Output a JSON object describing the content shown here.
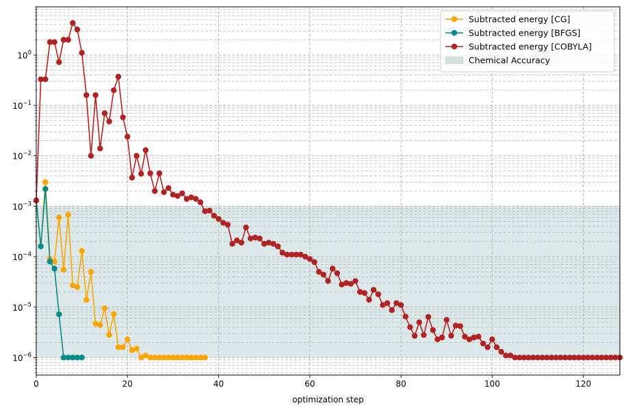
{
  "chart_data": {
    "type": "line",
    "yscale": "log",
    "xlabel": "optimization step",
    "ylabel": "",
    "xlim": [
      0,
      128
    ],
    "ylim": [
      4.5e-07,
      9.0
    ],
    "grid": true,
    "legend_position": "top-right",
    "x_ticks": [
      0,
      20,
      40,
      60,
      80,
      100,
      120
    ],
    "x_tick_labels": [
      "0",
      "20",
      "40",
      "60",
      "80",
      "100",
      "120"
    ],
    "y_ticks": [
      1e-06,
      1e-05,
      0.0001,
      0.001,
      0.01,
      0.1,
      1.0
    ],
    "y_tick_labels": [
      {
        "base": "10",
        "exp": "−6"
      },
      {
        "base": "10",
        "exp": "−5"
      },
      {
        "base": "10",
        "exp": "−4"
      },
      {
        "base": "10",
        "exp": "−3"
      },
      {
        "base": "10",
        "exp": "−2"
      },
      {
        "base": "10",
        "exp": "−1"
      },
      {
        "base": "10",
        "exp": "0"
      }
    ],
    "band": {
      "name": "Chemical Accuracy",
      "y0": 1e-06,
      "y1": 0.001,
      "color": "#d2e2e2"
    },
    "series": [
      {
        "name": " Subtracted energy [CG]",
        "color": "#ffa500",
        "values": [
          0.0013,
          0.00016,
          0.003,
          9e-05,
          8e-05,
          0.0006,
          5.5e-05,
          0.00068,
          2.7e-05,
          2.5e-05,
          0.00013,
          1.4e-05,
          5e-05,
          4.7e-06,
          4.4e-06,
          9.5e-06,
          2.8e-06,
          7.3e-06,
          1.6e-06,
          1.6e-06,
          2.3e-06,
          1.4e-06,
          1.5e-06,
          1e-06,
          1.1e-06,
          1e-06,
          1e-06,
          1e-06,
          1e-06,
          1e-06,
          1e-06,
          1e-06,
          1e-06,
          1e-06,
          1e-06,
          1e-06,
          1e-06,
          1e-06
        ]
      },
      {
        "name": " Subtracted energy [BFGS]",
        "color": "#008b8b",
        "values": [
          0.0013,
          0.00016,
          0.0022,
          8e-05,
          5.8e-05,
          7.2e-06,
          1e-06,
          1e-06,
          1e-06,
          1e-06,
          1e-06
        ]
      },
      {
        "name": " Subtracted energy [COBYLA]",
        "color": "#b22222",
        "values": [
          0.0013,
          0.33,
          0.33,
          1.8,
          1.8,
          0.72,
          2.0,
          2.0,
          4.3,
          3.2,
          1.1,
          0.16,
          0.01,
          0.16,
          0.014,
          0.07,
          0.048,
          0.2,
          0.37,
          0.058,
          0.024,
          0.0037,
          0.01,
          0.0044,
          0.013,
          0.0045,
          0.002,
          0.0045,
          0.0019,
          0.0023,
          0.0017,
          0.0016,
          0.0018,
          0.0014,
          0.0015,
          0.0014,
          0.0012,
          0.0008,
          0.00082,
          0.00065,
          0.00056,
          0.00047,
          0.00043,
          0.00018,
          0.00021,
          0.00019,
          0.00038,
          0.00023,
          0.00024,
          0.00023,
          0.00018,
          0.00019,
          0.00018,
          0.00016,
          0.00012,
          0.00011,
          0.00011,
          0.00011,
          0.00011,
          0.0001,
          9e-05,
          7.8e-05,
          5e-05,
          4.4e-05,
          3.3e-05,
          5.8e-05,
          4.7e-05,
          2.8e-05,
          3e-05,
          2.9e-05,
          3.3e-05,
          2e-05,
          1.9e-05,
          1.4e-05,
          2.2e-05,
          1.8e-05,
          1.1e-05,
          1.2e-05,
          8.7e-06,
          1.2e-05,
          1.1e-05,
          6.5e-06,
          4e-06,
          2.7e-06,
          5e-06,
          2.8e-06,
          6.4e-06,
          3.5e-06,
          2.3e-06,
          2.5e-06,
          5.6e-06,
          2.7e-06,
          4.3e-06,
          4.2e-06,
          2.6e-06,
          2.3e-06,
          2.5e-06,
          2.6e-06,
          1.9e-06,
          1.6e-06,
          2.3e-06,
          1.6e-06,
          1.3e-06,
          1.1e-06,
          1.1e-06,
          1e-06,
          1e-06,
          1e-06,
          1e-06,
          1e-06,
          1e-06,
          1e-06,
          1e-06,
          1e-06,
          1e-06,
          1e-06,
          1e-06,
          1e-06,
          1e-06,
          1e-06,
          1e-06,
          1e-06,
          1e-06,
          1e-06,
          1e-06,
          1e-06,
          1e-06,
          1e-06,
          1e-06
        ]
      }
    ]
  }
}
